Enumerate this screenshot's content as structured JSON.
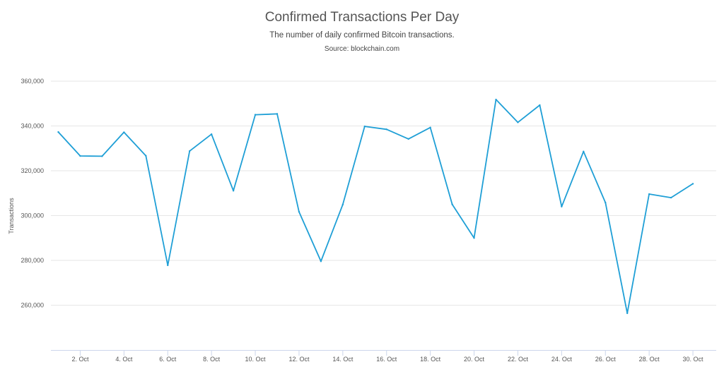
{
  "chart_data": {
    "type": "line",
    "title": "Confirmed Transactions Per Day",
    "subtitle": "The number of daily confirmed Bitcoin transactions.",
    "source": "Source: blockchain.com",
    "xlabel": "",
    "ylabel": "Transactions",
    "ylim": [
      240000,
      360000
    ],
    "yticks": [
      260000,
      280000,
      300000,
      320000,
      340000,
      360000
    ],
    "ytick_labels": [
      "260,000",
      "280,000",
      "300,000",
      "320,000",
      "340,000",
      "360,000"
    ],
    "xticks": [
      2,
      4,
      6,
      8,
      10,
      12,
      14,
      16,
      18,
      20,
      22,
      24,
      26,
      28,
      30
    ],
    "xtick_labels": [
      "2. Oct",
      "4. Oct",
      "6. Oct",
      "8. Oct",
      "10. Oct",
      "12. Oct",
      "14. Oct",
      "16. Oct",
      "18. Oct",
      "20. Oct",
      "22. Oct",
      "24. Oct",
      "26. Oct",
      "28. Oct",
      "30. Oct"
    ],
    "grid": true,
    "color": "#1f9fd6",
    "x": [
      1,
      2,
      3,
      4,
      5,
      6,
      7,
      8,
      9,
      10,
      11,
      12,
      13,
      14,
      15,
      16,
      17,
      18,
      19,
      20,
      21,
      22,
      23,
      24,
      25,
      26,
      27,
      28,
      29,
      30
    ],
    "values": [
      337300,
      326600,
      326500,
      337200,
      326700,
      277800,
      328800,
      336300,
      311100,
      345000,
      345400,
      301700,
      279600,
      304900,
      339800,
      338500,
      334200,
      339300,
      305000,
      290000,
      351800,
      341600,
      349300,
      304000,
      328600,
      305800,
      256400,
      309600,
      308000,
      314200
    ]
  }
}
